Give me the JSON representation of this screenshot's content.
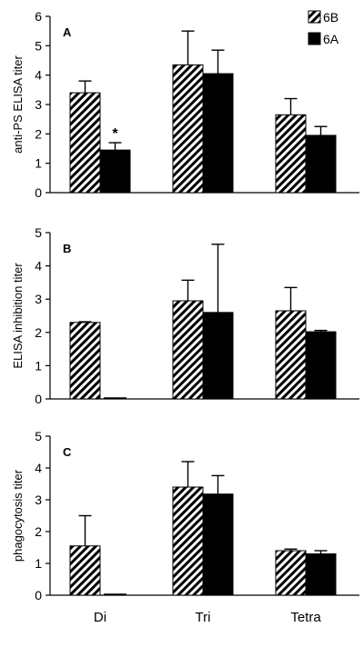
{
  "chart_data": [
    {
      "type": "bar",
      "panel": "A",
      "ylabel": "anti-PS ELISA titer",
      "ylim": [
        0,
        6
      ],
      "yticks": [
        "0",
        "1",
        "2",
        "3",
        "4",
        "5",
        "6"
      ],
      "categories": [
        "Di",
        "Tri",
        "Tetra"
      ],
      "series": [
        {
          "name": "6B",
          "values": [
            3.4,
            4.35,
            2.65
          ],
          "errors": [
            0.4,
            1.15,
            0.55
          ]
        },
        {
          "name": "6A",
          "values": [
            1.45,
            4.05,
            1.95
          ],
          "errors": [
            0.25,
            0.8,
            0.3
          ]
        }
      ],
      "annotation": {
        "text": "*",
        "series": 1,
        "category": 0
      },
      "legend": {
        "placement": "top-right",
        "entries": [
          "6B",
          "6A"
        ]
      }
    },
    {
      "type": "bar",
      "panel": "B",
      "ylabel": "ELISA inhibition titer",
      "ylim": [
        0,
        5
      ],
      "yticks": [
        "0",
        "1",
        "2",
        "3",
        "4",
        "5"
      ],
      "categories": [
        "Di",
        "Tri",
        "Tetra"
      ],
      "series": [
        {
          "name": "6B",
          "values": [
            2.3,
            2.95,
            2.65
          ],
          "errors": [
            0.02,
            0.62,
            0.7
          ]
        },
        {
          "name": "6A",
          "values": [
            0.0,
            2.6,
            2.02
          ],
          "errors": [
            0.0,
            2.05,
            0.04
          ]
        }
      ]
    },
    {
      "type": "bar",
      "panel": "C",
      "ylabel": "phagocytosis titer",
      "ylim": [
        0,
        5
      ],
      "yticks": [
        "0",
        "1",
        "2",
        "3",
        "4",
        "5"
      ],
      "categories": [
        "Di",
        "Tri",
        "Tetra"
      ],
      "series": [
        {
          "name": "6B",
          "values": [
            1.55,
            3.4,
            1.4
          ],
          "errors": [
            0.95,
            0.8,
            0.05
          ]
        },
        {
          "name": "6A",
          "values": [
            0.0,
            3.18,
            1.3
          ],
          "errors": [
            0.0,
            0.58,
            0.1
          ]
        }
      ]
    }
  ],
  "colors": {
    "series_6B": "hatched-black-white",
    "series_6A": "#000000",
    "axis": "#000000"
  }
}
